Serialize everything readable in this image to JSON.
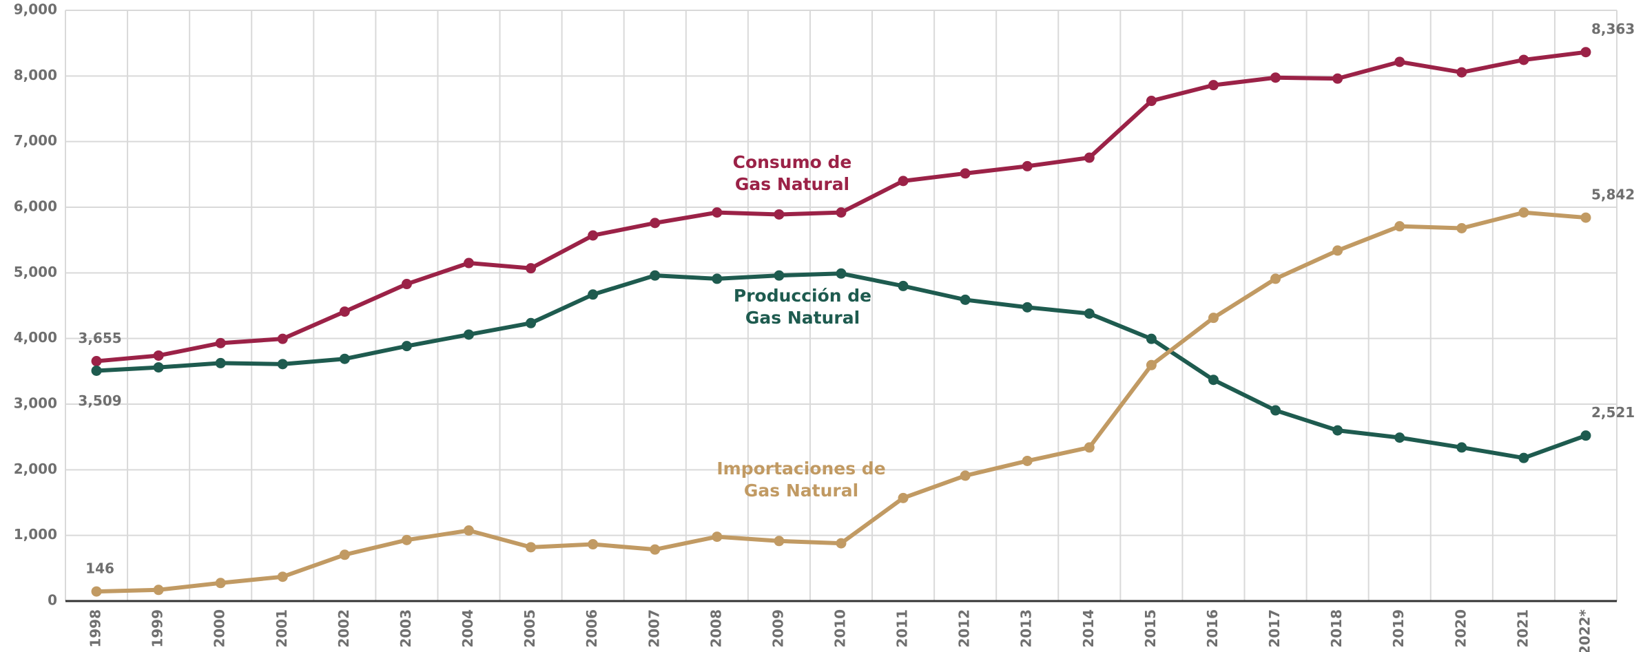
{
  "chart_data": {
    "type": "line",
    "categories": [
      "1998",
      "1999",
      "2000",
      "2001",
      "2002",
      "2003",
      "2004",
      "2005",
      "2006",
      "2007",
      "2008",
      "2009",
      "2010",
      "2011",
      "2012",
      "2013",
      "2014",
      "2015",
      "2016",
      "2017",
      "2018",
      "2019",
      "2020",
      "2021",
      "2022*"
    ],
    "series": [
      {
        "name": "Consumo de\nGas Natural",
        "color": "#9b2247",
        "values": [
          3655,
          3740,
          3930,
          3995,
          4410,
          4830,
          5150,
          5070,
          5570,
          5760,
          5920,
          5890,
          5920,
          6400,
          6515,
          6625,
          6755,
          7620,
          7860,
          7975,
          7960,
          8215,
          8055,
          8245,
          8363
        ],
        "value_labels": [
          "3,655",
          null,
          null,
          null,
          null,
          null,
          null,
          null,
          null,
          null,
          null,
          null,
          null,
          null,
          null,
          null,
          null,
          null,
          null,
          null,
          null,
          null,
          null,
          null,
          "8,363"
        ]
      },
      {
        "name": "Producción de\nGas Natural",
        "color": "#1e5b4f",
        "values": [
          3509,
          3560,
          3625,
          3610,
          3690,
          3885,
          4060,
          4235,
          4670,
          4960,
          4910,
          4960,
          4990,
          4800,
          4590,
          4475,
          4380,
          3995,
          3370,
          2905,
          2600,
          2490,
          2340,
          2180,
          2521
        ],
        "value_labels": [
          "3,509",
          null,
          null,
          null,
          null,
          null,
          null,
          null,
          null,
          null,
          null,
          null,
          null,
          null,
          null,
          null,
          null,
          null,
          null,
          null,
          null,
          null,
          null,
          null,
          "2,521"
        ]
      },
      {
        "name": "Importaciones de\nGas Natural",
        "color": "#c19a63",
        "values": [
          146,
          170,
          275,
          370,
          705,
          930,
          1075,
          820,
          865,
          785,
          980,
          915,
          880,
          1570,
          1910,
          2135,
          2340,
          3595,
          4315,
          4910,
          5340,
          5710,
          5680,
          5920,
          5842
        ],
        "value_labels": [
          "146",
          null,
          null,
          null,
          null,
          null,
          null,
          null,
          null,
          null,
          null,
          null,
          null,
          null,
          null,
          null,
          null,
          null,
          null,
          null,
          null,
          null,
          null,
          null,
          "5,842"
        ]
      }
    ],
    "ylim": [
      0,
      9000
    ],
    "yticks": [
      0,
      {
        "value": 1000,
        "label": "1,000"
      },
      {
        "value": 2000,
        "label": "2,000"
      },
      {
        "value": 3000,
        "label": "3,000"
      },
      {
        "value": 4000,
        "label": "4,000"
      },
      {
        "value": 5000,
        "label": "5,000"
      },
      {
        "value": 6000,
        "label": "6,000"
      },
      {
        "value": 7000,
        "label": "7,000"
      },
      {
        "value": 8000,
        "label": "8,000"
      },
      {
        "value": 9000,
        "label": "9,000"
      }
    ],
    "grid": true
  }
}
